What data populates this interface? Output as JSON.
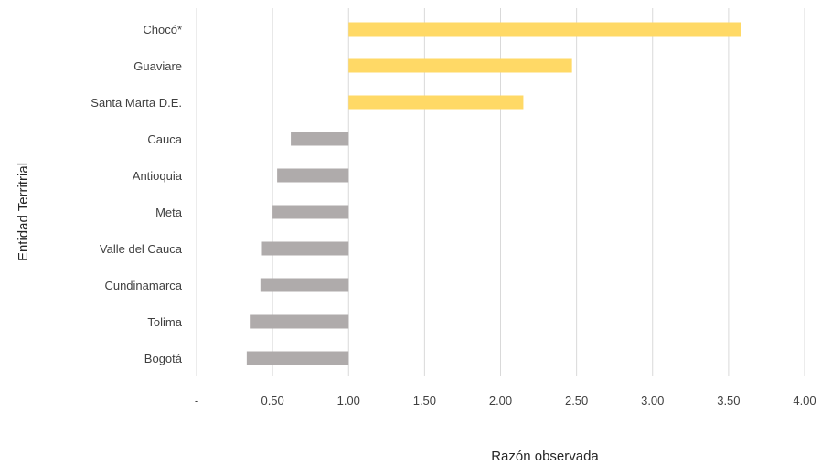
{
  "chart_data": {
    "type": "bar",
    "orientation": "horizontal",
    "baseline": 1.0,
    "xlabel": "Razón observada",
    "ylabel": "Entidad Territrial",
    "xlim": [
      0,
      4
    ],
    "xticks": [
      0,
      0.5,
      1.0,
      1.5,
      2.0,
      2.5,
      3.0,
      3.5,
      4.0
    ],
    "xtick_labels": [
      "-",
      "0.50",
      "1.00",
      "1.50",
      "2.00",
      "2.50",
      "3.00",
      "3.50",
      "4.00"
    ],
    "grid": true,
    "categories": [
      "Chocó*",
      "Guaviare",
      "Santa Marta D.E.",
      "Cauca",
      "Antioquia",
      "Meta",
      "Valle del Cauca",
      "Cundinamarca",
      "Tolima",
      "Bogotá"
    ],
    "values": [
      3.58,
      2.47,
      2.15,
      0.62,
      0.53,
      0.5,
      0.43,
      0.42,
      0.35,
      0.33
    ],
    "colors": {
      "above_baseline": "#FFD966",
      "below_baseline": "#AFABAB",
      "grid": "#D9D9D9"
    }
  }
}
